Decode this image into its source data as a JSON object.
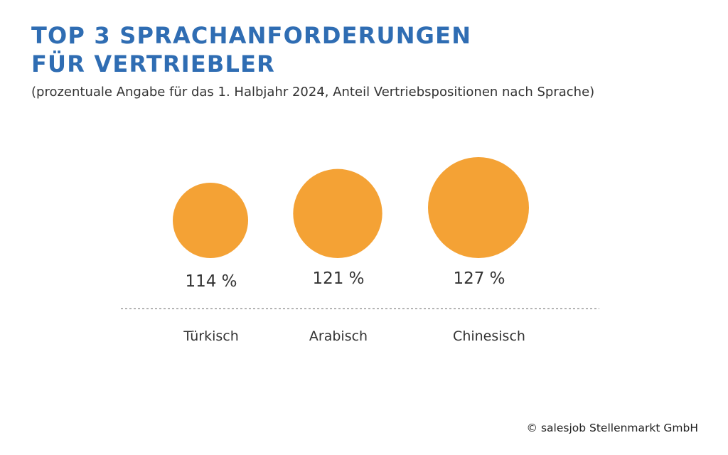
{
  "title_lines": [
    "TOP 3 SPRACHANFORDERUNGEN",
    "FÜR VERTRIEBLER"
  ],
  "subtitle": "(prozentuale Angabe für das 1. Halbjahr 2024, Anteil Vertriebspositionen nach Sprache)",
  "footer": "© salesjob Stellenmarkt GmbH",
  "colors": {
    "title": "#2f6db3",
    "bubble": "#f4a235",
    "text": "#333333",
    "divider": "#888888"
  },
  "chart_data": {
    "type": "bubble",
    "title": "TOP 3 SPRACHANFORDERUNGEN FÜR VERTRIEBLER",
    "subtitle": "(prozentuale Angabe für das 1. Halbjahr 2024, Anteil Vertriebspositionen nach Sprache)",
    "categories": [
      "Türkisch",
      "Arabisch",
      "Chinesisch"
    ],
    "values": [
      114,
      121,
      127
    ],
    "value_labels": [
      "114 %",
      "121 %",
      "127 %"
    ],
    "unit": "%"
  }
}
